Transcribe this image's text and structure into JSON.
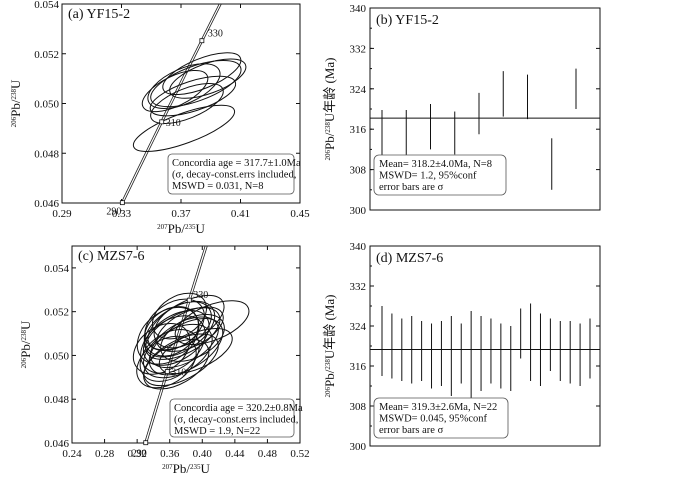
{
  "chart_data": [
    {
      "panel": "a",
      "type": "concordia",
      "title": "(a) YF15-2",
      "xlabel_sup": "207",
      "xlabel_main": "Pb/",
      "xlabel_sup2": "235",
      "xlabel_end": "U",
      "ylabel_sup": "206",
      "ylabel_main": "Pb/",
      "ylabel_sup2": "238",
      "ylabel_end": "U",
      "xlim": [
        0.29,
        0.45
      ],
      "ylim": [
        0.046,
        0.054
      ],
      "xticks": [
        "0.29",
        "0.33",
        "0.37",
        "0.41",
        "0.45"
      ],
      "yticks": [
        "0.046",
        "0.048",
        "0.050",
        "0.052",
        "0.054"
      ],
      "concordia_ages": [
        "290",
        "310",
        "330"
      ],
      "ellipses": [
        {
          "x": 0.384,
          "y": 0.0512,
          "rx": 0.028,
          "ry": 0.0006,
          "angle": 22
        },
        {
          "x": 0.38,
          "y": 0.0508,
          "rx": 0.032,
          "ry": 0.0007,
          "angle": 20
        },
        {
          "x": 0.372,
          "y": 0.0507,
          "rx": 0.026,
          "ry": 0.0007,
          "angle": 24
        },
        {
          "x": 0.378,
          "y": 0.0503,
          "rx": 0.03,
          "ry": 0.0006,
          "angle": 18
        },
        {
          "x": 0.388,
          "y": 0.051,
          "rx": 0.027,
          "ry": 0.0006,
          "angle": 20
        },
        {
          "x": 0.366,
          "y": 0.0505,
          "rx": 0.024,
          "ry": 0.0006,
          "angle": 26
        },
        {
          "x": 0.374,
          "y": 0.05,
          "rx": 0.026,
          "ry": 0.0006,
          "angle": 22
        },
        {
          "x": 0.372,
          "y": 0.049,
          "rx": 0.036,
          "ry": 0.0006,
          "angle": 20
        }
      ],
      "summary": [
        "Concordia age = 317.7±1.0Ma",
        "(σ, decay-const.errs included,",
        "MSWD = 0.031, N=8"
      ]
    },
    {
      "panel": "b",
      "type": "weighted-mean",
      "title": "(b) YF15-2",
      "ylabel": "Pb/U年龄 (Ma)",
      "ylabel_sup": "206",
      "ylabel_sup2": "238",
      "ylim": [
        300,
        340
      ],
      "yticks": [
        "300",
        "308",
        "316",
        "324",
        "332",
        "340"
      ],
      "mean": 318.2,
      "bars": [
        {
          "lo": 310.5,
          "hi": 319.8
        },
        {
          "lo": 310.8,
          "hi": 319.8
        },
        {
          "lo": 312.0,
          "hi": 321.0
        },
        {
          "lo": 311.0,
          "hi": 319.5
        },
        {
          "lo": 315.0,
          "hi": 323.2
        },
        {
          "lo": 318.5,
          "hi": 327.5
        },
        {
          "lo": 318.0,
          "hi": 326.8
        },
        {
          "lo": 304.0,
          "hi": 314.2
        },
        {
          "lo": 320.0,
          "hi": 328.0
        }
      ],
      "summary": [
        "Mean= 318.2±4.0Ma, N=8",
        "MSWD= 1.2, 95%conf",
        "error bars are σ"
      ]
    },
    {
      "panel": "c",
      "type": "concordia",
      "title": "(c) MZS7-6",
      "xlabel_sup": "207",
      "xlabel_main": "Pb/",
      "xlabel_sup2": "235",
      "xlabel_end": "U",
      "ylabel_sup": "206",
      "ylabel_main": "Pb/",
      "ylabel_sup2": "238",
      "ylabel_end": "U",
      "xlim": [
        0.24,
        0.52
      ],
      "ylim": [
        0.046,
        0.055
      ],
      "xticks": [
        "0.24",
        "0.28",
        "0.32",
        "0.36",
        "0.40",
        "0.44",
        "0.48",
        "0.52"
      ],
      "yticks": [
        "0.046",
        "0.048",
        "0.050",
        "0.052",
        "0.054"
      ],
      "concordia_ages": [
        "290",
        "310",
        "330"
      ],
      "ellipses": [
        {
          "x": 0.38,
          "y": 0.0515,
          "rx": 0.052,
          "ry": 0.0009,
          "angle": 30
        },
        {
          "x": 0.372,
          "y": 0.0512,
          "rx": 0.048,
          "ry": 0.001,
          "angle": 32
        },
        {
          "x": 0.368,
          "y": 0.0508,
          "rx": 0.045,
          "ry": 0.001,
          "angle": 34
        },
        {
          "x": 0.376,
          "y": 0.051,
          "rx": 0.05,
          "ry": 0.0009,
          "angle": 28
        },
        {
          "x": 0.364,
          "y": 0.0505,
          "rx": 0.044,
          "ry": 0.0011,
          "angle": 36
        },
        {
          "x": 0.37,
          "y": 0.0502,
          "rx": 0.046,
          "ry": 0.001,
          "angle": 30
        },
        {
          "x": 0.36,
          "y": 0.05,
          "rx": 0.04,
          "ry": 0.001,
          "angle": 35
        },
        {
          "x": 0.378,
          "y": 0.0506,
          "rx": 0.046,
          "ry": 0.0009,
          "angle": 30
        },
        {
          "x": 0.385,
          "y": 0.0512,
          "rx": 0.044,
          "ry": 0.0008,
          "angle": 26
        },
        {
          "x": 0.358,
          "y": 0.0509,
          "rx": 0.042,
          "ry": 0.0011,
          "angle": 38
        },
        {
          "x": 0.366,
          "y": 0.0514,
          "rx": 0.04,
          "ry": 0.001,
          "angle": 34
        },
        {
          "x": 0.374,
          "y": 0.0498,
          "rx": 0.05,
          "ry": 0.0009,
          "angle": 28
        },
        {
          "x": 0.38,
          "y": 0.0504,
          "rx": 0.05,
          "ry": 0.001,
          "angle": 31
        },
        {
          "x": 0.362,
          "y": 0.0511,
          "rx": 0.036,
          "ry": 0.001,
          "angle": 36
        },
        {
          "x": 0.412,
          "y": 0.0515,
          "rx": 0.048,
          "ry": 0.0008,
          "angle": 22
        },
        {
          "x": 0.372,
          "y": 0.0518,
          "rx": 0.036,
          "ry": 0.0009,
          "angle": 32
        },
        {
          "x": 0.35,
          "y": 0.0503,
          "rx": 0.038,
          "ry": 0.001,
          "angle": 36
        },
        {
          "x": 0.368,
          "y": 0.0496,
          "rx": 0.044,
          "ry": 0.0009,
          "angle": 30
        },
        {
          "x": 0.388,
          "y": 0.0508,
          "rx": 0.042,
          "ry": 0.0009,
          "angle": 27
        },
        {
          "x": 0.376,
          "y": 0.0514,
          "rx": 0.038,
          "ry": 0.0009,
          "angle": 30
        },
        {
          "x": 0.356,
          "y": 0.0497,
          "rx": 0.04,
          "ry": 0.001,
          "angle": 34
        },
        {
          "x": 0.392,
          "y": 0.0502,
          "rx": 0.048,
          "ry": 0.0008,
          "angle": 24
        }
      ],
      "summary": [
        "Concordia age = 320.2±0.8Ma",
        "(σ, decay-const.errs included,",
        "MSWD = 1.9, N=22"
      ]
    },
    {
      "panel": "d",
      "type": "weighted-mean",
      "title": "(d) MZS7-6",
      "ylabel": "Pb/U年龄 (Ma)",
      "ylabel_sup": "206",
      "ylabel_sup2": "238",
      "ylim": [
        300,
        340
      ],
      "yticks": [
        "300",
        "308",
        "316",
        "324",
        "332",
        "340"
      ],
      "mean": 319.3,
      "bars": [
        {
          "lo": 314.0,
          "hi": 328.0
        },
        {
          "lo": 313.5,
          "hi": 326.5
        },
        {
          "lo": 313.0,
          "hi": 325.5
        },
        {
          "lo": 312.5,
          "hi": 326.0
        },
        {
          "lo": 313.0,
          "hi": 325.0
        },
        {
          "lo": 311.5,
          "hi": 324.5
        },
        {
          "lo": 312.0,
          "hi": 325.0
        },
        {
          "lo": 310.0,
          "hi": 326.0
        },
        {
          "lo": 312.5,
          "hi": 324.5
        },
        {
          "lo": 309.0,
          "hi": 327.0
        },
        {
          "lo": 311.0,
          "hi": 326.0
        },
        {
          "lo": 312.5,
          "hi": 325.5
        },
        {
          "lo": 311.5,
          "hi": 324.5
        },
        {
          "lo": 311.0,
          "hi": 324.0
        },
        {
          "lo": 317.5,
          "hi": 327.5
        },
        {
          "lo": 313.0,
          "hi": 328.5
        },
        {
          "lo": 312.0,
          "hi": 326.5
        },
        {
          "lo": 315.0,
          "hi": 325.5
        },
        {
          "lo": 313.0,
          "hi": 325.0
        },
        {
          "lo": 312.5,
          "hi": 325.0
        },
        {
          "lo": 312.0,
          "hi": 324.5
        },
        {
          "lo": 313.5,
          "hi": 325.5
        }
      ],
      "summary": [
        "Mean= 319.3±2.6Ma, N=22",
        "MSWD= 0.045, 95%conf",
        "error bars are σ"
      ]
    }
  ]
}
